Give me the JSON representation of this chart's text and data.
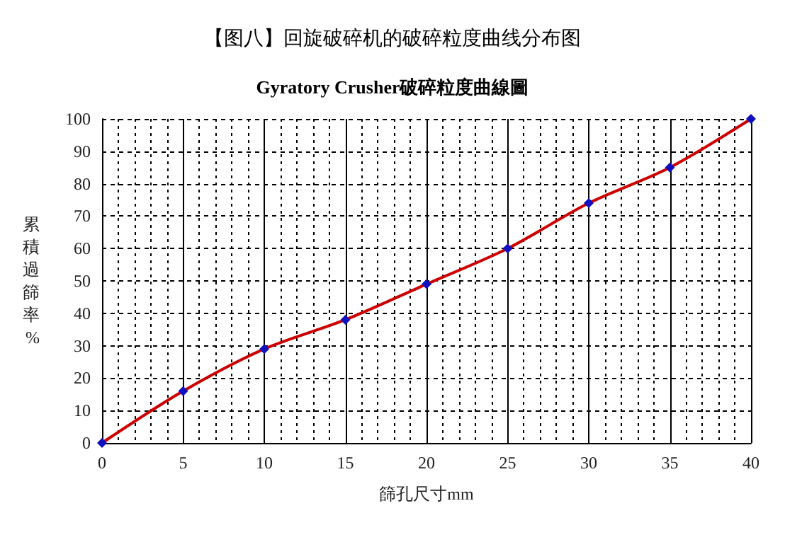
{
  "chart_data": {
    "type": "line",
    "title": "【图八】回旋破碎机的破碎粒度曲线分布图",
    "subtitle": "Gyratory Crusher破碎粒度曲線圖",
    "xlabel": "篩孔尺寸mm",
    "ylabel": "累積過篩率%",
    "x": [
      0,
      5,
      10,
      15,
      20,
      25,
      30,
      35,
      40
    ],
    "series": [
      {
        "color": "#cc0000",
        "values": [
          0,
          16,
          29,
          38,
          49,
          60,
          74,
          85,
          100
        ]
      }
    ],
    "xlim": [
      0,
      40
    ],
    "xticks": [
      0,
      5,
      10,
      15,
      20,
      25,
      30,
      35,
      40
    ],
    "ylim": [
      0,
      100
    ],
    "yticks": [
      0,
      10,
      20,
      30,
      40,
      50,
      60,
      70,
      80,
      90,
      100
    ],
    "grid": true,
    "marker": "diamond",
    "line_style": "solid"
  }
}
